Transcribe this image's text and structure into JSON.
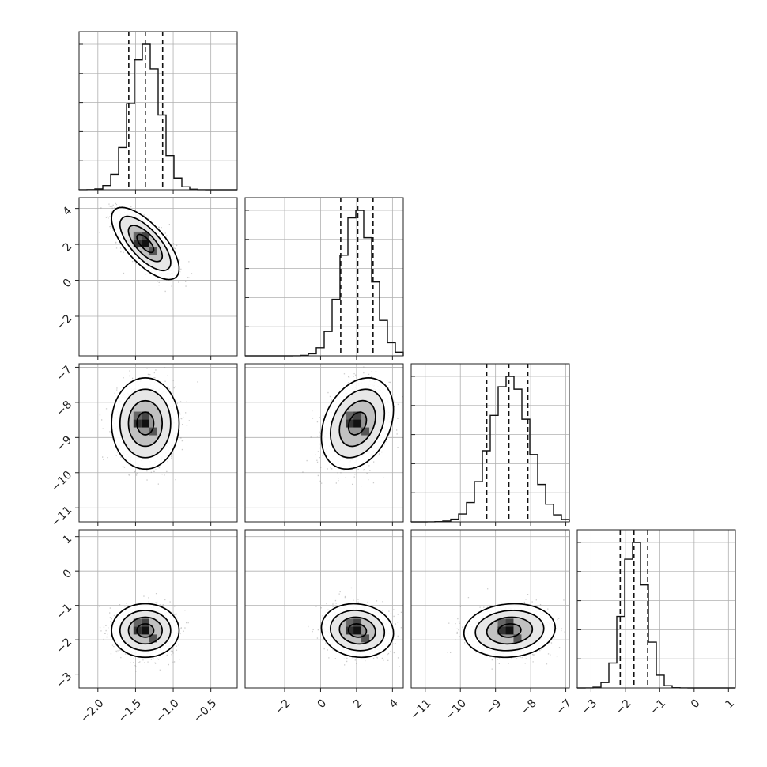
{
  "chart_data": {
    "type": "corner",
    "grid": true,
    "parameters": [
      {
        "index": 0,
        "range": [
          -2.25,
          -0.15
        ],
        "ticks": [
          -2.0,
          -1.5,
          -1.0,
          -0.5
        ],
        "tick_labels": [
          "−2.0",
          "−1.5",
          "−1.0",
          "−0.5"
        ],
        "mean": -1.37,
        "sd": 0.19,
        "quantiles": [
          -1.59,
          -1.37,
          -1.14
        ]
      },
      {
        "index": 1,
        "range": [
          -4.2,
          4.6
        ],
        "ticks": [
          -2,
          0,
          2,
          4
        ],
        "tick_labels": [
          "−2",
          "0",
          "2",
          "4"
        ],
        "mean": 2.05,
        "sd": 0.85,
        "quantiles": [
          1.12,
          2.07,
          2.92
        ]
      },
      {
        "index": 2,
        "range": [
          -11.4,
          -6.9
        ],
        "ticks": [
          -11,
          -10,
          -9,
          -8,
          -7
        ],
        "tick_labels": [
          "−11",
          "−10",
          "−9",
          "−8",
          "−7"
        ],
        "mean": -8.6,
        "sd": 0.55,
        "quantiles": [
          -9.25,
          -8.62,
          -8.08
        ]
      },
      {
        "index": 3,
        "range": [
          -3.4,
          1.2
        ],
        "ticks": [
          -3,
          -2,
          -1,
          0,
          1
        ],
        "tick_labels": [
          "−3",
          "−2",
          "−1",
          "0",
          "1"
        ],
        "mean": -1.73,
        "sd": 0.33,
        "quantiles": [
          -2.15,
          -1.75,
          -1.35
        ]
      }
    ],
    "pairs": [
      {
        "x": 0,
        "y": 1,
        "correlation": -0.7
      },
      {
        "x": 0,
        "y": 2,
        "correlation": 0.0
      },
      {
        "x": 1,
        "y": 2,
        "correlation": 0.3
      },
      {
        "x": 0,
        "y": 3,
        "correlation": 0.0
      },
      {
        "x": 1,
        "y": 3,
        "correlation": -0.1
      },
      {
        "x": 2,
        "y": 3,
        "correlation": 0.1
      }
    ],
    "contour_levels_sigma": [
      0.5,
      1.0,
      1.5,
      2.0
    ],
    "histogram_bins": 20,
    "histogram_color": "#000000",
    "scatter_color": "#8c8c8c",
    "density_color": "#000000"
  }
}
